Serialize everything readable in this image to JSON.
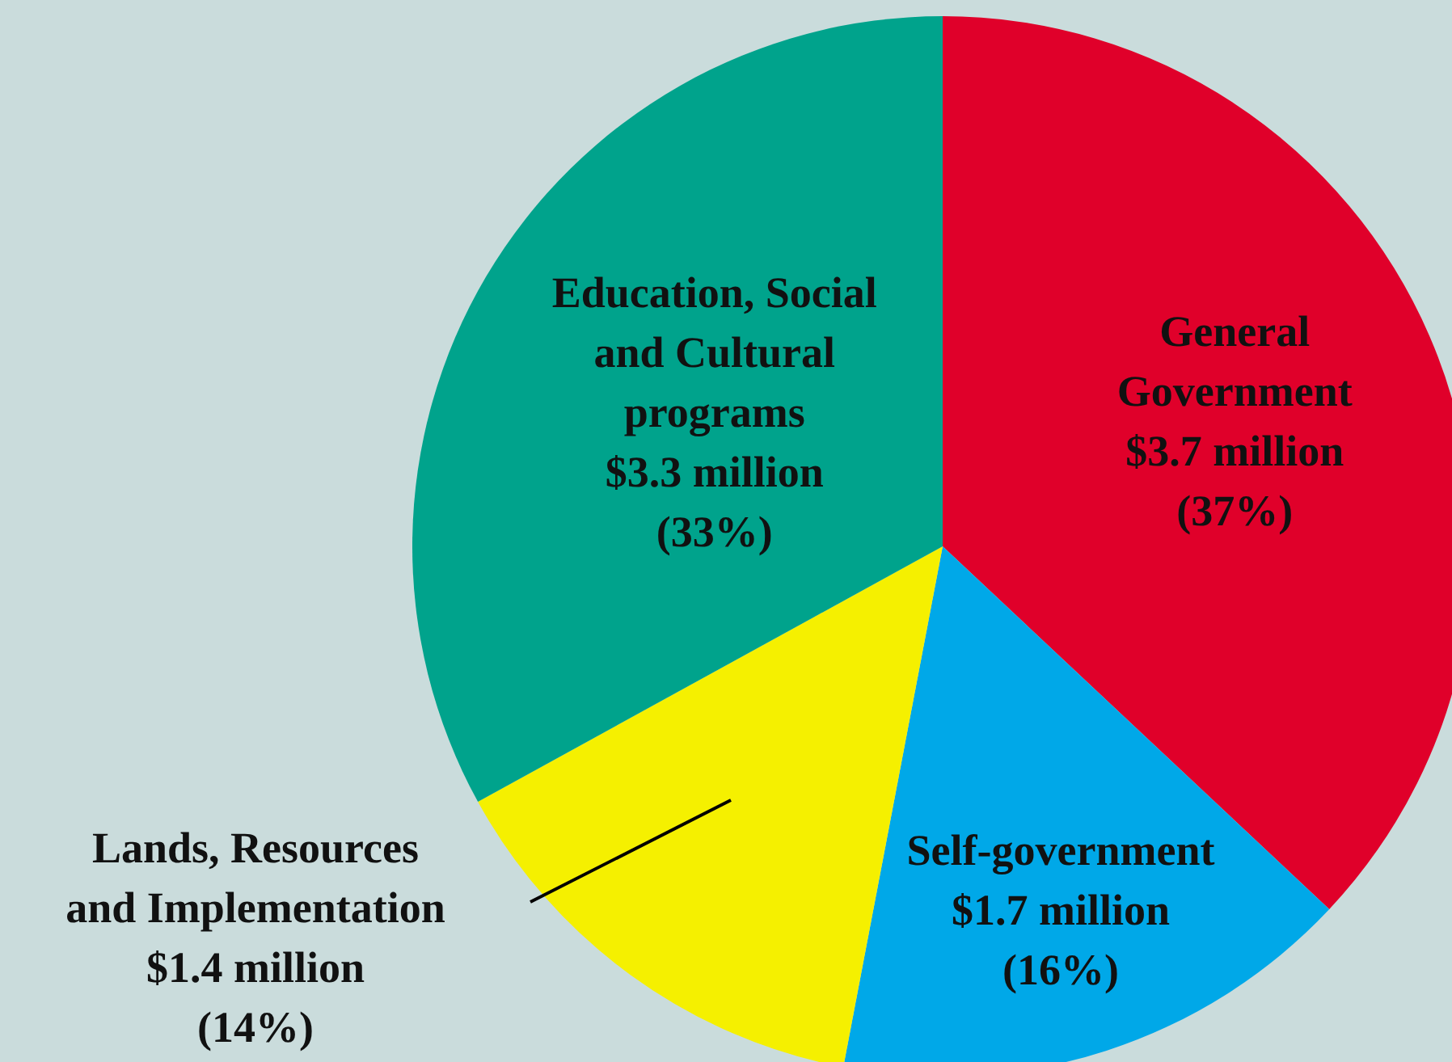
{
  "chart_data": {
    "type": "pie",
    "categories": [
      "General Government",
      "Self-government",
      "Lands, Resources and Implementation",
      "Education, Social and Cultural programs"
    ],
    "values": [
      37,
      16,
      14,
      33
    ],
    "value_labels": [
      "$3.7 million\n(37%)",
      "$1.7 million\n(16%)",
      "$1.4 million\n(14%)",
      "$3.3 million\n(33%)"
    ],
    "colors": [
      "#e0002a",
      "#00a8e8",
      "#f5f000",
      "#00a38c"
    ]
  }
}
